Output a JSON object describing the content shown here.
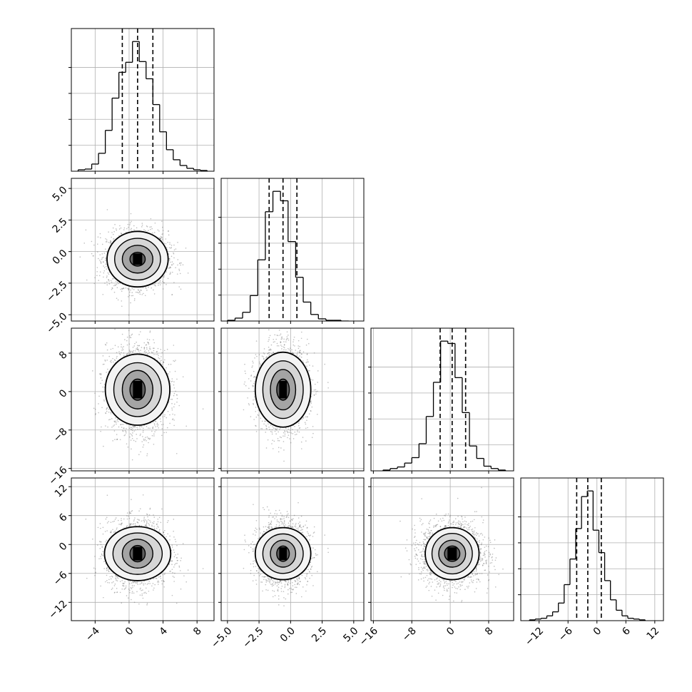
{
  "chart_data": {
    "type": "corner",
    "title": "",
    "grid": true,
    "n_params": 4,
    "parameters": [
      {
        "label": "",
        "range": [
          -6.8,
          10.0
        ],
        "ticks": [
          -4,
          0,
          4,
          8
        ],
        "tick_labels": [
          "−4",
          "0",
          "4",
          "8"
        ],
        "quantiles": [
          -0.8,
          1.0,
          2.8
        ]
      },
      {
        "label": "",
        "range": [
          -5.5,
          5.8
        ],
        "ticks": [
          -5.0,
          -2.5,
          0.0,
          2.5,
          5.0
        ],
        "tick_labels": [
          "−5.0",
          "−2.5",
          "0.0",
          "2.5",
          "5.0"
        ],
        "quantiles": [
          -1.7,
          -0.6,
          0.5
        ]
      },
      {
        "label": "",
        "range": [
          -16.5,
          13.2
        ],
        "ticks": [
          -16,
          -8,
          0,
          8
        ],
        "tick_labels": [
          "−16",
          "−8",
          "0",
          "8"
        ],
        "quantiles": [
          -2.1,
          0.4,
          3.2
        ]
      },
      {
        "label": "",
        "range": [
          -15.8,
          13.8
        ],
        "ticks": [
          -12,
          -6,
          0,
          6,
          12
        ],
        "tick_labels": [
          "−12",
          "−6",
          "0",
          "6",
          "12"
        ],
        "quantiles": [
          -4.2,
          -1.9,
          0.9
        ]
      }
    ],
    "histograms": [
      {
        "param": 0,
        "bin_edges": [
          -6.0,
          -5.2,
          -4.4,
          -3.6,
          -2.8,
          -2.0,
          -1.2,
          -0.4,
          0.4,
          1.2,
          2.0,
          2.8,
          3.6,
          4.4,
          5.2,
          6.0,
          6.8,
          7.6,
          8.4,
          9.2
        ],
        "counts": [
          2,
          3,
          10,
          25,
          57,
          102,
          138,
          152,
          181,
          153,
          129,
          93,
          55,
          30,
          16,
          8,
          4,
          2,
          1
        ]
      },
      {
        "param": 1,
        "bin_edges": [
          -5.0,
          -4.4,
          -3.8,
          -3.2,
          -2.6,
          -2.0,
          -1.4,
          -0.8,
          -0.2,
          0.4,
          1.0,
          1.6,
          2.2,
          2.8,
          3.4,
          4.0,
          4.6
        ],
        "counts": [
          1,
          4,
          12,
          35,
          84,
          150,
          178,
          165,
          109,
          60,
          26,
          9,
          3,
          1,
          1,
          0
        ]
      },
      {
        "param": 2,
        "bin_edges": [
          -14.0,
          -12.5,
          -11.0,
          -9.5,
          -8.0,
          -6.5,
          -5.0,
          -3.5,
          -2.0,
          -0.5,
          1.0,
          2.5,
          4.0,
          5.5,
          7.0,
          8.5,
          10.0,
          11.5
        ],
        "counts": [
          1,
          3,
          5,
          10,
          17,
          35,
          70,
          114,
          167,
          164,
          120,
          75,
          32,
          16,
          6,
          3,
          1
        ]
      },
      {
        "param": 3,
        "bin_edges": [
          -14.0,
          -12.8,
          -11.6,
          -10.4,
          -9.2,
          -8.0,
          -6.8,
          -5.6,
          -4.4,
          -3.2,
          -2.0,
          -0.8,
          0.4,
          1.6,
          2.8,
          4.0,
          5.2,
          6.4,
          7.6,
          8.8,
          10.0
        ],
        "counts": [
          1,
          2,
          3,
          6,
          11,
          22,
          45,
          77,
          115,
          155,
          162,
          113,
          85,
          50,
          26,
          13,
          6,
          3,
          2,
          1
        ]
      }
    ],
    "pairs": [
      {
        "x_param": 0,
        "y_param": 1,
        "peak": [
          1.0,
          -0.6
        ],
        "contour_radii": [
          [
            0.9,
            0.55
          ],
          [
            1.8,
            1.1
          ],
          [
            2.7,
            1.65
          ],
          [
            3.6,
            2.2
          ]
        ]
      },
      {
        "x_param": 0,
        "y_param": 2,
        "peak": [
          1.0,
          0.4
        ],
        "contour_radii": [
          [
            0.9,
            2.2
          ],
          [
            1.8,
            4.0
          ],
          [
            2.8,
            5.6
          ],
          [
            3.8,
            7.4
          ]
        ]
      },
      {
        "x_param": 1,
        "y_param": 2,
        "peak": [
          -0.6,
          0.4
        ],
        "contour_radii": [
          [
            0.5,
            2.2
          ],
          [
            1.0,
            4.2
          ],
          [
            1.6,
            6.0
          ],
          [
            2.2,
            7.8
          ]
        ]
      },
      {
        "x_param": 0,
        "y_param": 3,
        "peak": [
          1.0,
          -1.9
        ],
        "contour_radii": [
          [
            0.9,
            1.7
          ],
          [
            1.8,
            3.0
          ],
          [
            2.9,
            4.3
          ],
          [
            3.9,
            5.6
          ]
        ]
      },
      {
        "x_param": 1,
        "y_param": 3,
        "peak": [
          -0.6,
          -1.9
        ],
        "contour_radii": [
          [
            0.5,
            1.6
          ],
          [
            1.0,
            2.8
          ],
          [
            1.6,
            4.1
          ],
          [
            2.2,
            5.4
          ]
        ]
      },
      {
        "x_param": 2,
        "y_param": 3,
        "peak": [
          0.4,
          -1.9
        ],
        "contour_radii": [
          [
            1.6,
            1.6
          ],
          [
            2.8,
            2.8
          ],
          [
            4.2,
            4.2
          ],
          [
            5.6,
            5.4
          ]
        ]
      }
    ],
    "samples_per_panel": 2200,
    "colors": {
      "line": "#000000",
      "grid": "#b0b0b0",
      "density": "#000000",
      "samples": "#6e6e6e"
    }
  }
}
